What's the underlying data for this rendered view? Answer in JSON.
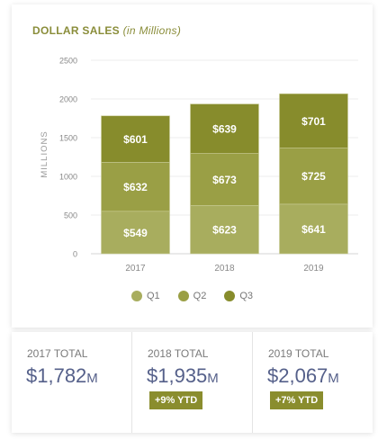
{
  "title": {
    "main": "DOLLAR SALES",
    "sub": "(in Millions)"
  },
  "chart_data": {
    "type": "bar",
    "stacked": true,
    "categories": [
      "2017",
      "2018",
      "2019"
    ],
    "series": [
      {
        "name": "Q1",
        "values": [
          549,
          623,
          641
        ],
        "labels": [
          "$549",
          "$623",
          "$641"
        ],
        "color": "#a8ad5e"
      },
      {
        "name": "Q2",
        "values": [
          632,
          673,
          725
        ],
        "labels": [
          "$632",
          "$673",
          "$725"
        ],
        "color": "#9a9f45"
      },
      {
        "name": "Q3",
        "values": [
          601,
          639,
          701
        ],
        "labels": [
          "$601",
          "$639",
          "$701"
        ],
        "color": "#878c2c"
      }
    ],
    "ylabel": "MILLIONS",
    "ylim": [
      0,
      2500
    ],
    "yticks": [
      "0",
      "500",
      "1000",
      "1500",
      "2000",
      "2500"
    ],
    "grid": true,
    "legend_position": "bottom"
  },
  "totals": [
    {
      "label": "2017 TOTAL",
      "value": "$1,782",
      "unit": "M",
      "badge": ""
    },
    {
      "label": "2018 TOTAL",
      "value": "$1,935",
      "unit": "M",
      "badge": "+9% YTD"
    },
    {
      "label": "2019 TOTAL",
      "value": "$2,067",
      "unit": "M",
      "badge": "+7% YTD"
    }
  ]
}
